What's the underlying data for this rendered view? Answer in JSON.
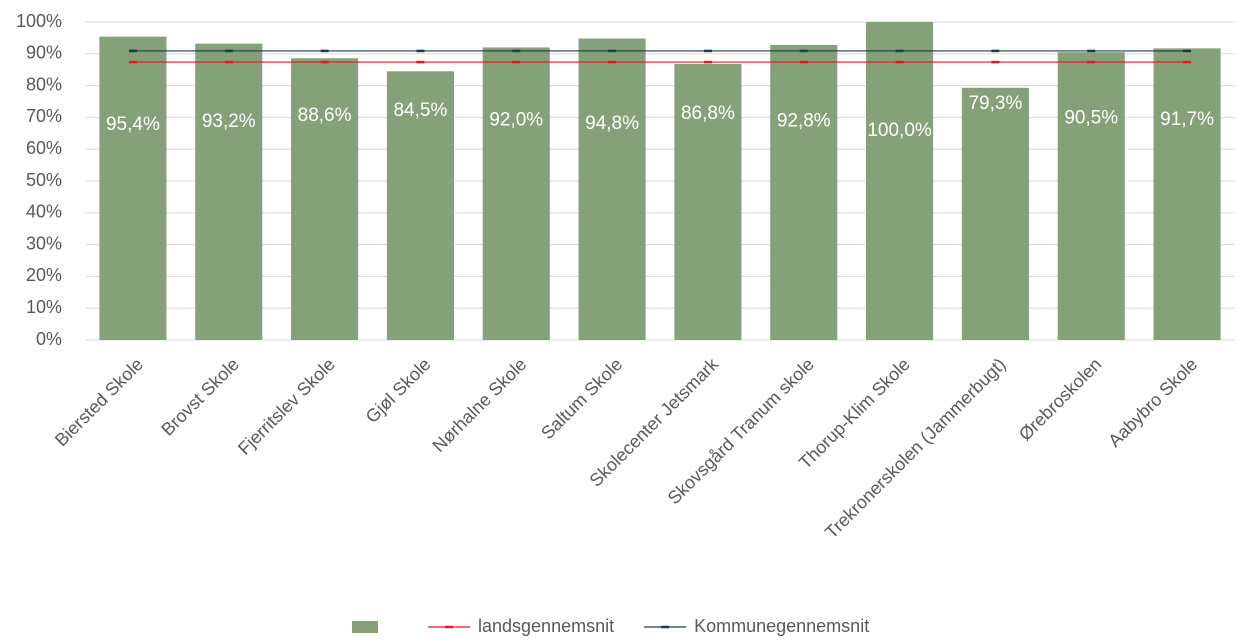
{
  "chart_data": {
    "type": "bar",
    "categories": [
      "Biersted Skole",
      "Brovst Skole",
      "Fjerritslev Skole",
      "Gjøl Skole",
      "Nørhalne Skole",
      "Saltum Skole",
      "Skolecenter Jetsmark",
      "Skovsgård Tranum skole",
      "Thorup-Klim Skole",
      "Trekronerskolen (Jammerbugt)",
      "Ørebroskolen",
      "Aabybro Skole"
    ],
    "series": [
      {
        "type": "bar",
        "color": "#85a17a",
        "values": [
          95.4,
          93.2,
          88.6,
          84.5,
          92.0,
          94.8,
          86.8,
          92.8,
          100.0,
          79.3,
          90.5,
          91.7
        ],
        "value_labels": [
          "95,4%",
          "93,2%",
          "88,6%",
          "84,5%",
          "92,0%",
          "94,8%",
          "86,8%",
          "92,8%",
          "100,0%",
          "79,3%",
          "90,5%",
          "91,7%"
        ]
      },
      {
        "type": "line",
        "name": "landsgennemsnit",
        "color": "#e8141e",
        "values": [
          87.4,
          87.4,
          87.4,
          87.4,
          87.4,
          87.4,
          87.4,
          87.4,
          87.4,
          87.4,
          87.4,
          87.4
        ]
      },
      {
        "type": "line",
        "name": "Kommunegennemsnit",
        "color": "#1f3a4d",
        "values": [
          90.9,
          90.9,
          90.9,
          90.9,
          90.9,
          90.9,
          90.9,
          90.9,
          90.9,
          90.9,
          90.9,
          90.9
        ]
      }
    ],
    "ylim": [
      0,
      100
    ],
    "yticks": [
      {
        "value": 0,
        "label": "0%"
      },
      {
        "value": 10,
        "label": "10%"
      },
      {
        "value": 20,
        "label": "20%"
      },
      {
        "value": 30,
        "label": "30%"
      },
      {
        "value": 40,
        "label": "40%"
      },
      {
        "value": 50,
        "label": "50%"
      },
      {
        "value": 60,
        "label": "60%"
      },
      {
        "value": 70,
        "label": "70%"
      },
      {
        "value": 80,
        "label": "80%"
      },
      {
        "value": 90,
        "label": "90%"
      },
      {
        "value": 100,
        "label": "100%"
      }
    ],
    "legend": "bottom"
  }
}
